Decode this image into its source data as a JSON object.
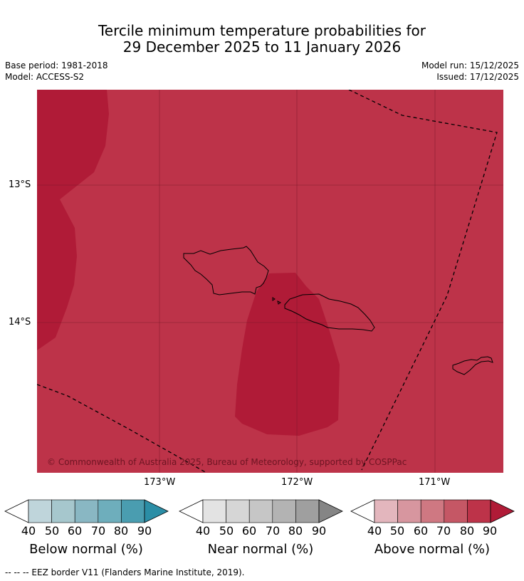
{
  "header": {
    "title_line1": "Tercile minimum temperature probabilities for",
    "title_line2": "29 December 2025 to 11 January 2026",
    "base_period": "Base period: 1981-2018",
    "model": "Model: ACCESS-S2",
    "model_run": "Model run: 15/12/2025",
    "issued": "Issued: 17/12/2025"
  },
  "map": {
    "lat_labels": [
      "13°S",
      "14°S"
    ],
    "lon_labels": [
      "173°W",
      "172°W",
      "171°W"
    ],
    "copyright": "© Commonwealth of Australia 2025, Bureau of Meteorology, supported by COSPPac",
    "colors": {
      "above_80_90": "#bd3349",
      "above_90": "#b01b37",
      "coast": "#000000",
      "grid": "#7a1a2a"
    }
  },
  "colorbars": [
    {
      "title": "Below normal (%)",
      "ticks": [
        "40",
        "50",
        "60",
        "70",
        "80",
        "90"
      ],
      "colors": [
        "#ffffff",
        "#bfd5db",
        "#a6c7cd",
        "#89b7c3",
        "#6eaebc",
        "#4a9db0",
        "#2b8ea6"
      ]
    },
    {
      "title": "Near normal (%)",
      "ticks": [
        "40",
        "50",
        "60",
        "70",
        "80",
        "90"
      ],
      "colors": [
        "#ffffff",
        "#e3e3e3",
        "#d6d6d6",
        "#c6c6c6",
        "#b3b3b3",
        "#9f9f9f",
        "#858585"
      ]
    },
    {
      "title": "Above normal (%)",
      "ticks": [
        "40",
        "50",
        "60",
        "70",
        "80",
        "90"
      ],
      "colors": [
        "#ffffff",
        "#e3b6bd",
        "#d7969f",
        "#cf7882",
        "#c55765",
        "#bd3349",
        "#b01b37"
      ]
    }
  ],
  "footer": {
    "eez_legend": "--  --  -- EEZ border V11 (Flanders Marine Institute, 2019)."
  }
}
